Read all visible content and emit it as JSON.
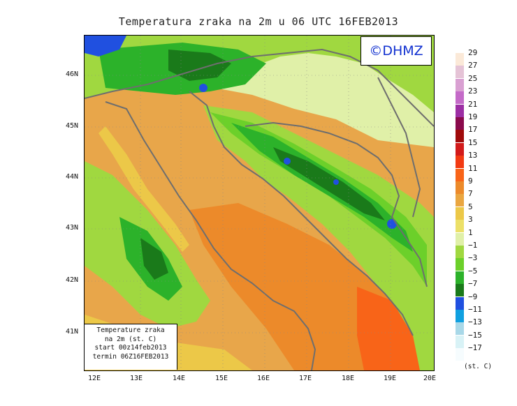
{
  "title": "Temperatura zraka na 2m u 06 UTC 16FEB2013",
  "logo": "©DHMZ",
  "info_box": {
    "line1": "Temperature zraka",
    "line2": "na 2m (st. C)",
    "line3": "start 00z14feb2013",
    "line4": "termin 06Z16FEB2013"
  },
  "lat_labels": [
    "46N",
    "45N",
    "44N",
    "43N",
    "42N",
    "41N"
  ],
  "lon_labels": [
    "12E",
    "13E",
    "14E",
    "15E",
    "16E",
    "17E",
    "18E",
    "19E",
    "20E"
  ],
  "legend": {
    "unit": "(st. C)",
    "labels": [
      "29",
      "27",
      "25",
      "23",
      "21",
      "19",
      "17",
      "15",
      "13",
      "11",
      "9",
      "7",
      "5",
      "3",
      "1",
      "−1",
      "−3",
      "−5",
      "−7",
      "−9",
      "−11",
      "−13",
      "−15",
      "−17"
    ],
    "colors": [
      "#fbe9d8",
      "#e5c3d6",
      "#d9a0d2",
      "#c46ac8",
      "#9c2ea4",
      "#8a0a4c",
      "#a00a0a",
      "#d21a1a",
      "#f23a12",
      "#f86418",
      "#ec8a2a",
      "#eaa640",
      "#ecc848",
      "#ece068",
      "#e0f0a8",
      "#a0d840",
      "#6cd02a",
      "#2cb22a",
      "#1a7a1a",
      "#2050e0",
      "#10a0e0",
      "#a8d8e8",
      "#d8f2f6",
      "#f6fcfe"
    ]
  },
  "colors": {
    "warm": "#e8a64a",
    "orange": "#ec8a2a",
    "deep_orange": "#f86418",
    "yellow": "#ecc848",
    "pale_yellow": "#e0f0a8",
    "light_green": "#a0d840",
    "green": "#6cd02a",
    "mid_green": "#2cb22a",
    "dark_green": "#1a7a1a",
    "blue": "#2050e0",
    "coast": "#6e6e6e"
  }
}
